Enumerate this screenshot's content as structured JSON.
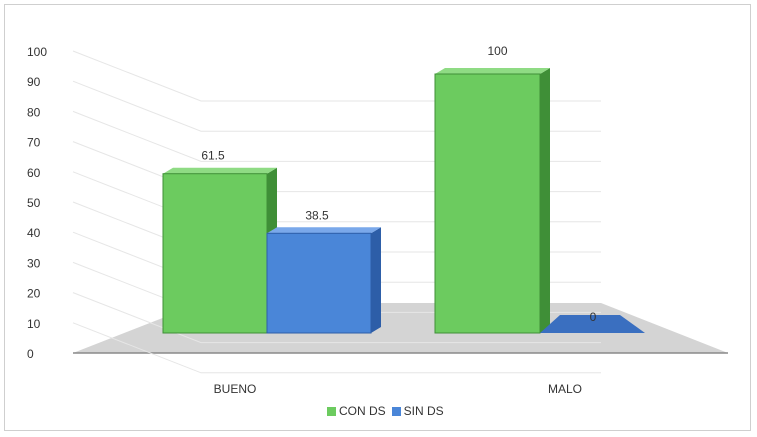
{
  "chart_data": {
    "type": "bar",
    "categories": [
      "BUENO",
      "MALO"
    ],
    "series": [
      {
        "name": "CON DS",
        "values": [
          61.5,
          100
        ],
        "labels": [
          "61.5",
          "100"
        ],
        "color": "#6ccb5f"
      },
      {
        "name": "SIN DS",
        "values": [
          38.5,
          0
        ],
        "labels": [
          "38.5",
          "0"
        ],
        "color": "#4a86d8"
      }
    ],
    "ylim": [
      0,
      100
    ],
    "yticks": [
      0,
      10,
      20,
      30,
      40,
      50,
      60,
      70,
      80,
      90,
      100
    ],
    "grid": true,
    "legend": "bottom",
    "style": "3d-clustered-column"
  }
}
